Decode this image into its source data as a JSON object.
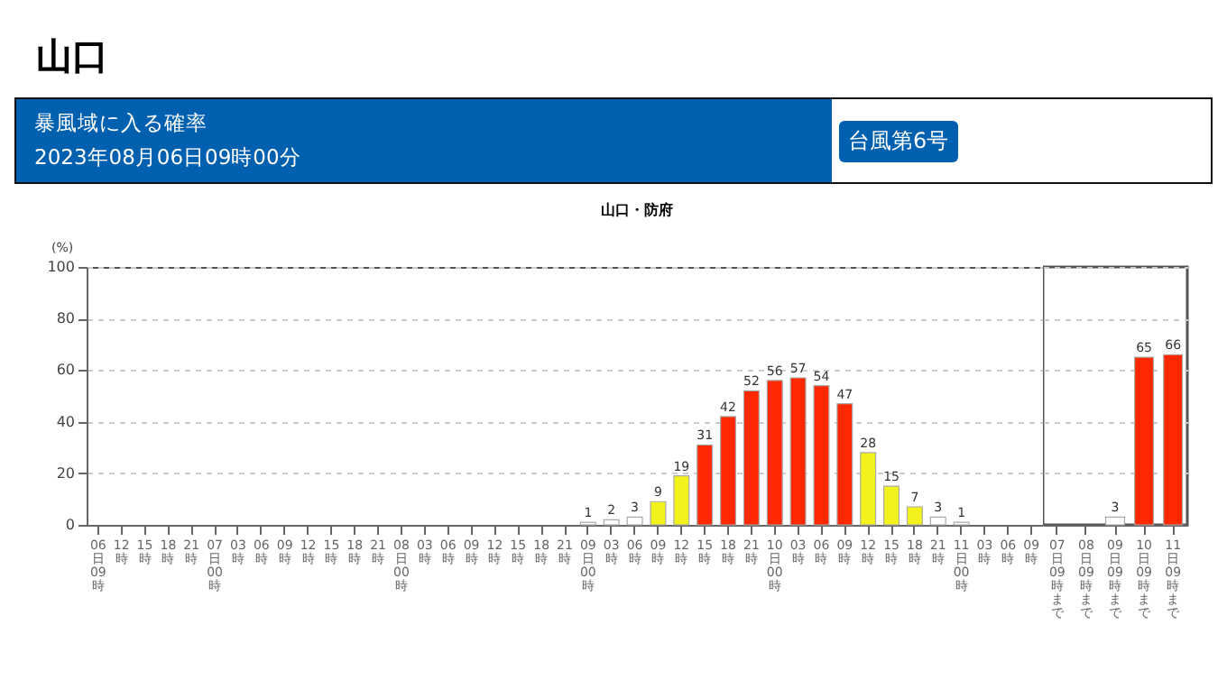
{
  "chart_data": [
    {
      "type": "other",
      "title": "山口",
      "annotations": [
        "暴風域に入る確率",
        "2023年08月06日09時00分",
        "台風第6号"
      ]
    },
    {
      "type": "bar",
      "title": "山口・防府",
      "ylabel": "(%)",
      "categories": [
        "06日09時",
        "12時",
        "15時",
        "18時",
        "21時",
        "07日00時",
        "03時",
        "06時",
        "09時",
        "12時",
        "15時",
        "18時",
        "21時",
        "08日00時",
        "03時",
        "06時",
        "09時",
        "12時",
        "15時",
        "18時",
        "21時",
        "09日00時",
        "03時",
        "06時",
        "09時",
        "12時",
        "15時",
        "18時",
        "21時",
        "10日00時",
        "03時",
        "06時",
        "09時",
        "12時",
        "15時",
        "18時",
        "21時",
        "11日00時",
        "03時",
        "06時",
        "09時"
      ],
      "values": [
        null,
        null,
        null,
        null,
        null,
        null,
        null,
        null,
        null,
        null,
        null,
        null,
        null,
        null,
        null,
        null,
        null,
        null,
        null,
        null,
        null,
        1,
        2,
        3,
        9,
        19,
        31,
        42,
        52,
        56,
        57,
        54,
        47,
        28,
        15,
        7,
        3,
        1,
        null,
        null,
        null
      ],
      "colors": [
        null,
        null,
        null,
        null,
        null,
        null,
        null,
        null,
        null,
        null,
        null,
        null,
        null,
        null,
        null,
        null,
        null,
        null,
        null,
        null,
        null,
        "#ffffff",
        "#ffffff",
        "#ffffff",
        "#f2f21c",
        "#f2f21c",
        "#ff2800",
        "#ff2800",
        "#ff2800",
        "#ff2800",
        "#ff2800",
        "#ff2800",
        "#ff2800",
        "#f2f21c",
        "#f2f21c",
        "#f2f21c",
        "#ffffff",
        "#ffffff",
        null,
        null,
        null
      ],
      "ylim": [
        0,
        100
      ],
      "yticks": [
        0,
        20,
        40,
        60,
        80,
        100
      ],
      "grid": "y",
      "data_labels": true
    },
    {
      "type": "bar",
      "categories": [
        "07日09時まで",
        "08日09時まで",
        "09日09時まで",
        "10日09時まで",
        "11日09時まで"
      ],
      "values": [
        null,
        null,
        3,
        65,
        66
      ],
      "colors": [
        null,
        null,
        "#ffffff",
        "#ff2800",
        "#ff2800"
      ],
      "ylim": [
        0,
        100
      ],
      "yticks": [
        0,
        20,
        40,
        60,
        80,
        100
      ],
      "grid": "y",
      "data_labels": true,
      "tick_labels": "x"
    }
  ]
}
